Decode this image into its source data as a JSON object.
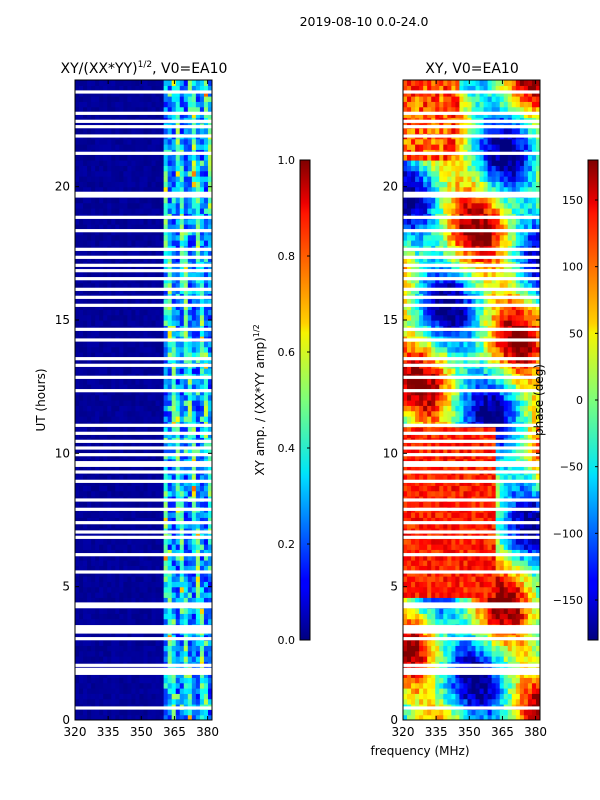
{
  "figure": {
    "suptitle": "2019-08-10 0.0-24.0",
    "shared_xlabel": "frequency (MHz)"
  },
  "chart_data": [
    {
      "type": "heatmap",
      "title_main": "XY/(XX*YY)",
      "title_exp": "1/2",
      "title_suffix": ", V0=EA10",
      "xlabel": "",
      "ylabel": "UT (hours)",
      "xlim": [
        320,
        382
      ],
      "ylim": [
        0,
        24
      ],
      "xticks": [
        320,
        335,
        350,
        365,
        380
      ],
      "yticks": [
        0,
        5,
        10,
        15,
        20
      ],
      "colormap": "jet",
      "value_description": "normalized XY amplitude, near 0 below ~360 MHz, 0.1-0.6 above ~361 MHz",
      "high_activity_freq_start": 361,
      "colorbar": {
        "label_main": "XY amp. / (XX*YY amp)",
        "label_exp": "1/2",
        "range": [
          0.0,
          1.0
        ],
        "ticks": [
          "0.0",
          "0.2",
          "0.4",
          "0.6",
          "0.8",
          "1.0"
        ],
        "tick_values": [
          0.0,
          0.2,
          0.4,
          0.6,
          0.8,
          1.0
        ]
      },
      "flagged_hours": [
        0.45,
        1.75,
        1.8,
        1.9,
        2.05,
        3.05,
        3.3,
        3.4,
        3.5,
        4.25,
        4.35,
        5.55,
        6.2,
        6.85,
        7.05,
        7.4,
        7.9,
        8.25,
        8.95,
        9.3,
        9.55,
        9.65,
        9.95,
        10.2,
        10.45,
        10.75,
        11.05,
        12.35,
        12.85,
        13.3,
        13.55,
        14.25,
        14.65,
        15.55,
        15.85,
        16.15,
        16.55,
        16.85,
        17.05,
        17.35,
        17.65,
        18.35,
        18.85,
        19.65,
        19.75,
        21.25,
        21.9,
        22.25,
        22.45,
        22.75,
        23.55
      ]
    },
    {
      "type": "heatmap",
      "title": "XY, V0=EA10",
      "xlabel": "frequency (MHz)",
      "ylabel": "",
      "xlim": [
        320,
        382
      ],
      "ylim": [
        0,
        24
      ],
      "xticks": [
        320,
        335,
        350,
        365,
        380
      ],
      "yticks": [
        0,
        5,
        10,
        15,
        20
      ],
      "colormap": "jet",
      "value_description": "XY phase in degrees, -180 to 180",
      "colorbar": {
        "label": "phase (deg)",
        "range": [
          -180,
          180
        ],
        "ticks": [
          "−150",
          "−100",
          "−50",
          "0",
          "50",
          "100",
          "150"
        ],
        "tick_values": [
          -150,
          -100,
          -50,
          0,
          50,
          100,
          150
        ]
      },
      "flagged_hours": [
        0.45,
        1.75,
        1.8,
        1.9,
        2.05,
        3.05,
        3.3,
        3.4,
        3.5,
        4.25,
        4.35,
        5.55,
        6.2,
        6.85,
        7.05,
        7.4,
        7.9,
        8.25,
        8.95,
        9.3,
        9.55,
        9.65,
        9.95,
        10.2,
        10.45,
        10.75,
        11.05,
        12.35,
        12.85,
        13.3,
        13.55,
        14.25,
        14.65,
        15.55,
        15.85,
        16.15,
        16.55,
        16.85,
        17.05,
        17.35,
        17.65,
        18.35,
        18.85,
        19.65,
        19.75,
        21.25,
        21.9,
        22.25,
        22.45,
        22.75,
        23.55
      ]
    }
  ]
}
